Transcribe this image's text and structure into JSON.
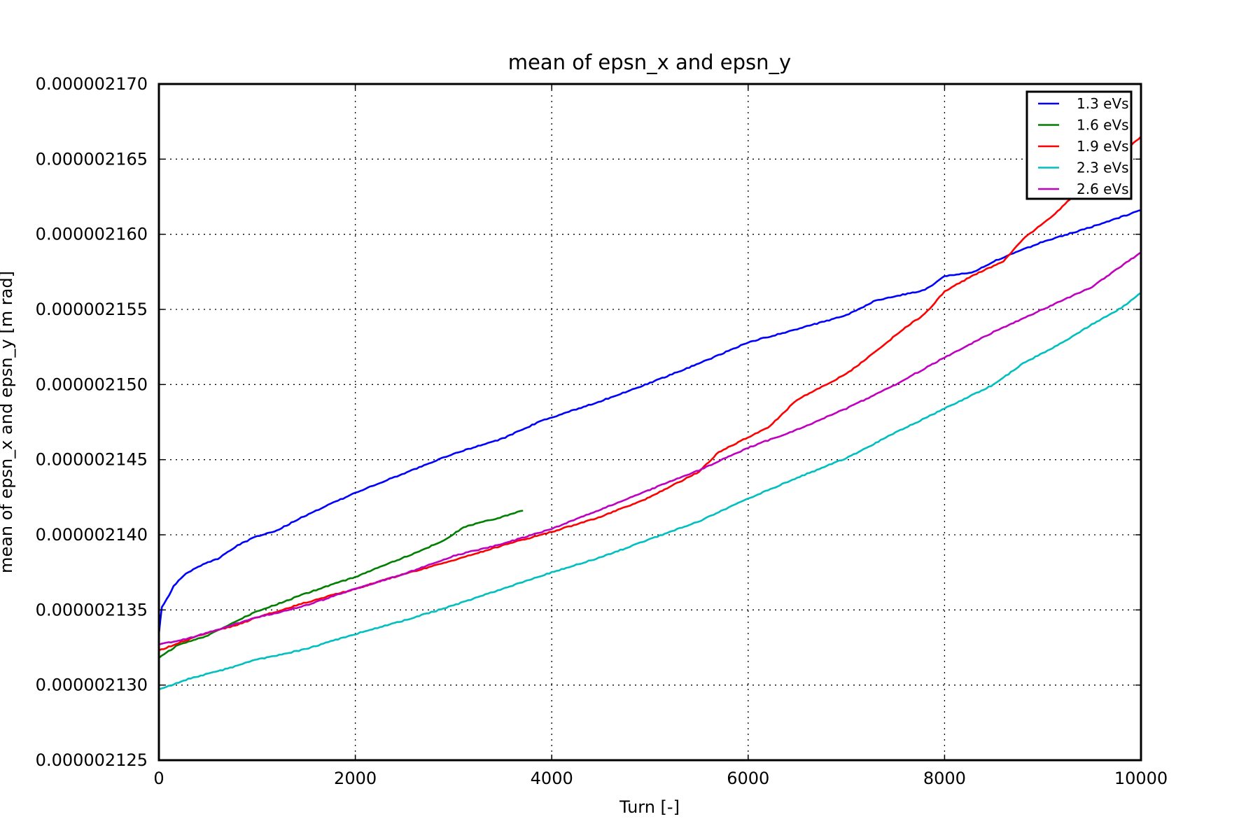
{
  "chart_data": {
    "type": "line",
    "title": "mean of epsn_x and epsn_y",
    "xlabel": "Turn [-]",
    "ylabel": "mean of epsn_x and epsn_y [m rad]",
    "xlim": [
      0,
      10000
    ],
    "ylim": [
      2.125e-06,
      2.17e-06
    ],
    "grid": true,
    "legend_position": "top-right",
    "x_ticks": [
      "0",
      "2000",
      "4000",
      "6000",
      "8000",
      "10000"
    ],
    "y_ticks": [
      "0.000002125",
      "0.000002130",
      "0.000002135",
      "0.000002140",
      "0.000002145",
      "0.000002150",
      "0.000002155",
      "0.000002160",
      "0.000002165",
      "0.000002170"
    ],
    "x_tick_values": [
      0,
      2000,
      4000,
      6000,
      8000,
      10000
    ],
    "y_tick_values": [
      2.125e-06,
      2.13e-06,
      2.135e-06,
      2.14e-06,
      2.145e-06,
      2.15e-06,
      2.155e-06,
      2.16e-06,
      2.165e-06,
      2.17e-06
    ],
    "series": [
      {
        "name": "1.3 eVs",
        "color": "#0000ff",
        "points": [
          [
            0,
            2.1334
          ],
          [
            30,
            2.1352
          ],
          [
            80,
            2.1357
          ],
          [
            150,
            2.1366
          ],
          [
            250,
            2.1373
          ],
          [
            400,
            2.1379
          ],
          [
            600,
            2.1384
          ],
          [
            800,
            2.1393
          ],
          [
            1000,
            2.1399
          ],
          [
            1200,
            2.1403
          ],
          [
            1500,
            2.1413
          ],
          [
            2000,
            2.1428
          ],
          [
            2500,
            2.1441
          ],
          [
            3000,
            2.1454
          ],
          [
            3500,
            2.1464
          ],
          [
            3900,
            2.1476
          ],
          [
            4500,
            2.1489
          ],
          [
            5000,
            2.1501
          ],
          [
            5500,
            2.1514
          ],
          [
            6000,
            2.1528
          ],
          [
            6500,
            2.1537
          ],
          [
            7000,
            2.1546
          ],
          [
            7300,
            2.1556
          ],
          [
            7800,
            2.1563
          ],
          [
            8000,
            2.1572
          ],
          [
            8300,
            2.1575
          ],
          [
            8500,
            2.1582
          ],
          [
            9000,
            2.1595
          ],
          [
            9500,
            2.1605
          ],
          [
            10000,
            2.1616
          ]
        ]
      },
      {
        "name": "1.6 eVs",
        "color": "#007f00",
        "points": [
          [
            0,
            2.1318
          ],
          [
            200,
            2.1327
          ],
          [
            500,
            2.1333
          ],
          [
            800,
            2.1343
          ],
          [
            1000,
            2.1349
          ],
          [
            1500,
            2.1361
          ],
          [
            2000,
            2.1372
          ],
          [
            2500,
            2.1385
          ],
          [
            2900,
            2.1396
          ],
          [
            3100,
            2.1405
          ],
          [
            3500,
            2.1412
          ],
          [
            3700,
            2.1416
          ]
        ]
      },
      {
        "name": "1.9 eVs",
        "color": "#ff0000",
        "points": [
          [
            0,
            2.1323
          ],
          [
            200,
            2.1328
          ],
          [
            500,
            2.1335
          ],
          [
            800,
            2.134
          ],
          [
            1000,
            2.1345
          ],
          [
            1500,
            2.1355
          ],
          [
            2000,
            2.1364
          ],
          [
            2500,
            2.1374
          ],
          [
            3000,
            2.1383
          ],
          [
            3500,
            2.1393
          ],
          [
            4000,
            2.1402
          ],
          [
            4500,
            2.1412
          ],
          [
            5000,
            2.1425
          ],
          [
            5500,
            2.1442
          ],
          [
            5700,
            2.1455
          ],
          [
            6000,
            2.1465
          ],
          [
            6200,
            2.1471
          ],
          [
            6500,
            2.149
          ],
          [
            7000,
            2.1507
          ],
          [
            7300,
            2.1522
          ],
          [
            7600,
            2.1538
          ],
          [
            7800,
            2.1547
          ],
          [
            8000,
            2.1562
          ],
          [
            8300,
            2.1573
          ],
          [
            8600,
            2.1582
          ],
          [
            8800,
            2.1597
          ],
          [
            9100,
            2.1612
          ],
          [
            9300,
            2.1625
          ],
          [
            9600,
            2.1642
          ],
          [
            10000,
            2.1665
          ]
        ]
      },
      {
        "name": "2.3 eVs",
        "color": "#00bfbf",
        "points": [
          [
            0,
            2.1297
          ],
          [
            300,
            2.1304
          ],
          [
            700,
            2.1311
          ],
          [
            1000,
            2.1317
          ],
          [
            1500,
            2.1324
          ],
          [
            2000,
            2.1334
          ],
          [
            2500,
            2.1343
          ],
          [
            3000,
            2.1353
          ],
          [
            3500,
            2.1364
          ],
          [
            4000,
            2.1375
          ],
          [
            4500,
            2.1385
          ],
          [
            5000,
            2.1397
          ],
          [
            5500,
            2.1409
          ],
          [
            6000,
            2.1424
          ],
          [
            6500,
            2.1438
          ],
          [
            7000,
            2.1451
          ],
          [
            7500,
            2.1468
          ],
          [
            8000,
            2.1484
          ],
          [
            8500,
            2.15
          ],
          [
            8800,
            2.1514
          ],
          [
            9200,
            2.1528
          ],
          [
            9500,
            2.154
          ],
          [
            9800,
            2.1551
          ],
          [
            10000,
            2.1561
          ]
        ]
      },
      {
        "name": "2.6 eVs",
        "color": "#bf00bf",
        "points": [
          [
            0,
            2.1327
          ],
          [
            300,
            2.1331
          ],
          [
            700,
            2.1339
          ],
          [
            1000,
            2.1345
          ],
          [
            1500,
            2.1353
          ],
          [
            2000,
            2.1364
          ],
          [
            2500,
            2.1374
          ],
          [
            3000,
            2.1386
          ],
          [
            3500,
            2.1394
          ],
          [
            4000,
            2.1404
          ],
          [
            4500,
            2.1417
          ],
          [
            5000,
            2.143
          ],
          [
            5500,
            2.1443
          ],
          [
            6000,
            2.1458
          ],
          [
            6500,
            2.147
          ],
          [
            7000,
            2.1484
          ],
          [
            7500,
            2.15
          ],
          [
            8000,
            2.1518
          ],
          [
            8500,
            2.1535
          ],
          [
            9000,
            2.155
          ],
          [
            9500,
            2.1565
          ],
          [
            10000,
            2.1588
          ]
        ]
      }
    ]
  }
}
